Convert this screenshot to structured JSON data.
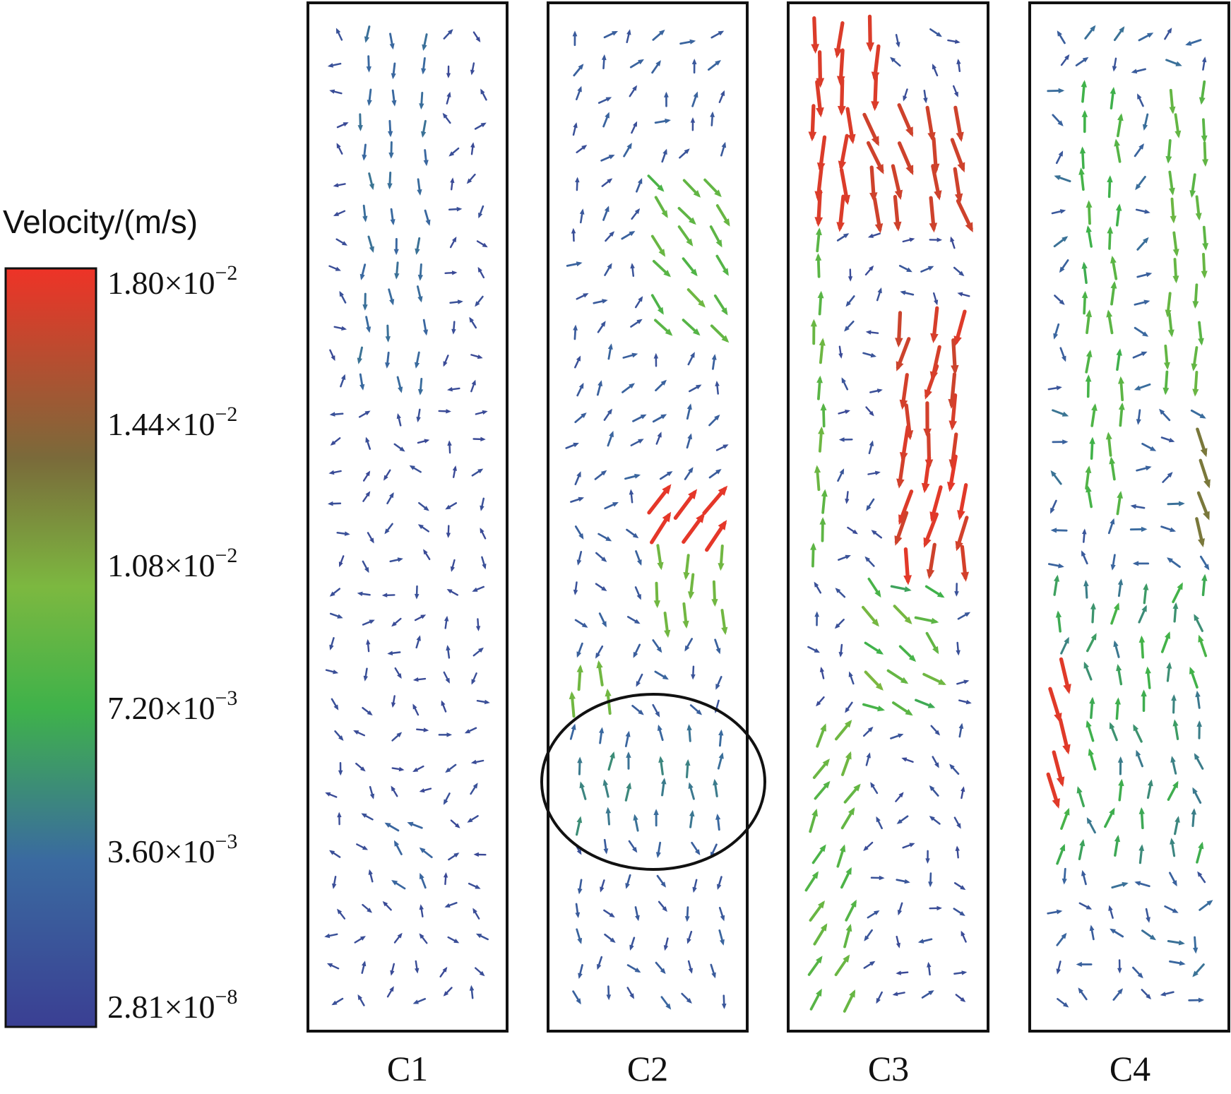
{
  "legend": {
    "title": "Velocity/(m/s)",
    "ticks": [
      {
        "mantissa": "1.80×10",
        "exponent": "−2",
        "value": 0.018
      },
      {
        "mantissa": "1.44×10",
        "exponent": "−2",
        "value": 0.0144
      },
      {
        "mantissa": "1.08×10",
        "exponent": "−2",
        "value": 0.0108
      },
      {
        "mantissa": "7.20×10",
        "exponent": "−3",
        "value": 0.0072
      },
      {
        "mantissa": "3.60×10",
        "exponent": "−3",
        "value": 0.0036
      },
      {
        "mantissa": "2.81×10",
        "exponent": "−8",
        "value": 2.81e-08
      }
    ],
    "color_stops": [
      "#3a3f93",
      "#3a6aa0",
      "#3fb24a",
      "#7cb840",
      "#7a6a3a",
      "#ee3327"
    ]
  },
  "panels": [
    {
      "label": "C1",
      "flow_hint": "central-downflow",
      "highlighted": false
    },
    {
      "label": "C2",
      "flow_hint": "cross-swirl",
      "highlighted": true
    },
    {
      "label": "C3",
      "flow_hint": "strong-right-downflow",
      "highlighted": false
    },
    {
      "label": "C4",
      "flow_hint": "left-upflow",
      "highlighted": false
    }
  ],
  "colors": {
    "frame": "#111111",
    "ellipse": "#111111"
  }
}
